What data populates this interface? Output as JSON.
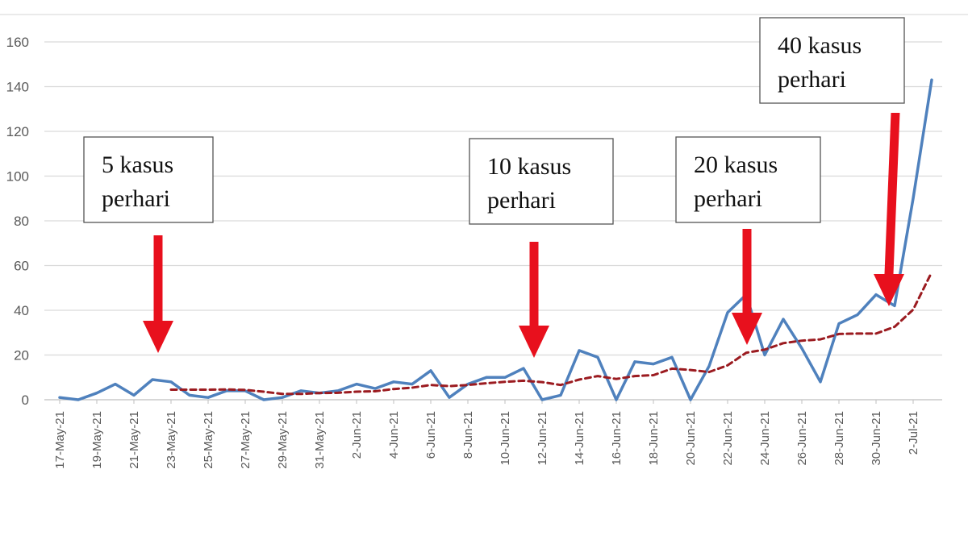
{
  "chart_data": {
    "type": "line",
    "title": "",
    "xlabel": "",
    "ylabel": "",
    "ylim": [
      0,
      160
    ],
    "yticks": [
      0,
      20,
      40,
      60,
      80,
      100,
      120,
      140,
      160
    ],
    "grid": "horizontal",
    "x": [
      "17-May-21",
      "18-May-21",
      "19-May-21",
      "20-May-21",
      "21-May-21",
      "22-May-21",
      "23-May-21",
      "24-May-21",
      "25-May-21",
      "26-May-21",
      "27-May-21",
      "28-May-21",
      "29-May-21",
      "30-May-21",
      "31-May-21",
      "1-Jun-21",
      "2-Jun-21",
      "3-Jun-21",
      "4-Jun-21",
      "5-Jun-21",
      "6-Jun-21",
      "7-Jun-21",
      "8-Jun-21",
      "9-Jun-21",
      "10-Jun-21",
      "11-Jun-21",
      "12-Jun-21",
      "13-Jun-21",
      "14-Jun-21",
      "15-Jun-21",
      "16-Jun-21",
      "17-Jun-21",
      "18-Jun-21",
      "19-Jun-21",
      "20-Jun-21",
      "21-Jun-21",
      "22-Jun-21",
      "23-Jun-21",
      "24-Jun-21",
      "25-Jun-21",
      "26-Jun-21",
      "27-Jun-21",
      "28-Jun-21",
      "29-Jun-21",
      "30-Jun-21",
      "1-Jul-21",
      "2-Jul-21",
      "3-Jul-21"
    ],
    "xtick_labels": [
      "17-May-21",
      "19-May-21",
      "21-May-21",
      "23-May-21",
      "25-May-21",
      "27-May-21",
      "29-May-21",
      "31-May-21",
      "2-Jun-21",
      "4-Jun-21",
      "6-Jun-21",
      "8-Jun-21",
      "10-Jun-21",
      "12-Jun-21",
      "14-Jun-21",
      "16-Jun-21",
      "18-Jun-21",
      "20-Jun-21",
      "22-Jun-21",
      "24-Jun-21",
      "26-Jun-21",
      "28-Jun-21",
      "30-Jun-21",
      "2-Jul-21"
    ],
    "series": [
      {
        "name": "",
        "style": "solid",
        "color": "#4f81bd",
        "values": [
          1,
          0,
          3,
          7,
          2,
          9,
          8,
          2,
          1,
          4,
          4,
          0,
          1,
          4,
          3,
          4,
          7,
          5,
          8,
          7,
          13,
          1,
          7,
          10,
          10,
          14,
          0,
          2,
          22,
          19,
          0,
          17,
          16,
          19,
          0,
          15,
          39,
          47,
          20,
          36,
          23,
          8,
          34,
          38,
          47,
          42,
          90,
          143
        ]
      },
      {
        "name": "",
        "style": "dashed",
        "color": "#9b1b20",
        "values": [
          null,
          null,
          null,
          null,
          null,
          null,
          4.5,
          4.5,
          4.5,
          4.6,
          4.4,
          3.6,
          2.6,
          2.6,
          3.0,
          3.1,
          3.6,
          3.8,
          4.8,
          5.4,
          6.6,
          6.1,
          6.6,
          7.4,
          8.0,
          8.5,
          7.9,
          6.6,
          9.0,
          10.6,
          9.3,
          10.6,
          11.0,
          13.9,
          13.3,
          12.4,
          15.4,
          21.0,
          22.4,
          25.3,
          26.4,
          27.0,
          29.4,
          29.6,
          29.6,
          32.6,
          40.3,
          57.0
        ]
      }
    ],
    "annotations": [
      {
        "lines": [
          "5 kasus",
          "perhari"
        ],
        "target_index": 6
      },
      {
        "lines": [
          "10 kasus",
          "perhari"
        ],
        "target_index": 26
      },
      {
        "lines": [
          "20 kasus",
          "perhari"
        ],
        "target_index": 37
      },
      {
        "lines": [
          "40 kasus",
          "perhari"
        ],
        "target_index": 45
      }
    ],
    "colors": {
      "grid": "#d9d9d9",
      "axis": "#bfbfbf",
      "arrow": "#e8101d"
    }
  }
}
